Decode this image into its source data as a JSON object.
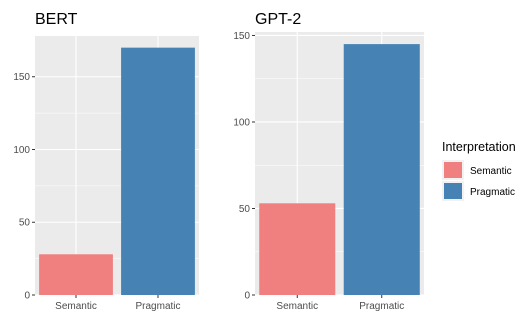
{
  "chart_data": [
    {
      "type": "bar",
      "title": "BERT",
      "categories": [
        "Semantic",
        "Pragmatic"
      ],
      "values": [
        28,
        170
      ],
      "ylim": [
        0,
        178
      ],
      "yticks": [
        0,
        50,
        100,
        150
      ],
      "grid": true
    },
    {
      "type": "bar",
      "title": "GPT-2",
      "categories": [
        "Semantic",
        "Pragmatic"
      ],
      "values": [
        53,
        145
      ],
      "ylim": [
        0,
        152
      ],
      "yticks": [
        0,
        50,
        100,
        150
      ],
      "grid": true
    }
  ],
  "legend": {
    "title": "Interpretation",
    "placement": "right",
    "items": [
      {
        "label": "Semantic",
        "color": "#F08080"
      },
      {
        "label": "Pragmatic",
        "color": "#4682B4"
      }
    ]
  },
  "colors": {
    "panel_background": "#EBEBEB",
    "grid": "#FFFFFF",
    "semantic": "#F08080",
    "pragmatic": "#4682B4"
  }
}
